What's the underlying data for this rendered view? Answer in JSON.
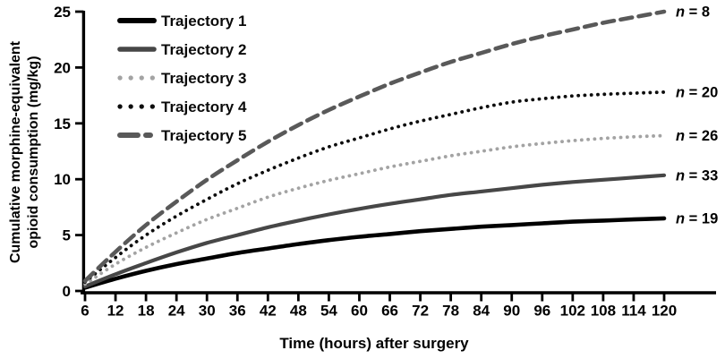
{
  "chart_data": {
    "type": "line",
    "title": "",
    "xlabel": "Time (hours) after surgery",
    "ylabel": "Cumulative morphine-equivalent opioid consumption (mg/kg)",
    "ylabel_lines": [
      "Cumulative morphine-equivalent",
      "opioid consumption (mg/kg)"
    ],
    "xlim": [
      6,
      120
    ],
    "ylim": [
      0,
      25
    ],
    "xticks": [
      6,
      12,
      18,
      24,
      30,
      36,
      42,
      48,
      54,
      60,
      66,
      72,
      78,
      84,
      90,
      96,
      102,
      108,
      114,
      120
    ],
    "yticks": [
      0,
      5,
      10,
      15,
      20,
      25
    ],
    "grid": false,
    "legend_position": "top-left",
    "axis_color": "#000000",
    "x": [
      6,
      12,
      18,
      24,
      30,
      36,
      42,
      48,
      54,
      60,
      66,
      72,
      78,
      84,
      90,
      96,
      102,
      108,
      114,
      120
    ],
    "series": [
      {
        "name": "Trajectory 1",
        "style": "solid",
        "color": "#000000",
        "width": 4.6,
        "n_label": "n = 19",
        "values": [
          0.3,
          1.1,
          1.8,
          2.4,
          2.9,
          3.4,
          3.8,
          4.2,
          4.55,
          4.85,
          5.1,
          5.35,
          5.55,
          5.75,
          5.9,
          6.05,
          6.2,
          6.3,
          6.4,
          6.5
        ]
      },
      {
        "name": "Trajectory 2",
        "style": "solid",
        "color": "#474747",
        "width": 4.2,
        "n_label": "n = 33",
        "values": [
          0.4,
          1.5,
          2.5,
          3.45,
          4.3,
          5.0,
          5.7,
          6.3,
          6.85,
          7.35,
          7.8,
          8.2,
          8.6,
          8.9,
          9.2,
          9.5,
          9.75,
          9.95,
          10.15,
          10.35
        ]
      },
      {
        "name": "Trajectory 3",
        "style": "dotted",
        "color": "#a3a3a3",
        "width": 3.8,
        "n_label": "n = 26",
        "values": [
          0.6,
          2.4,
          3.9,
          5.2,
          6.4,
          7.4,
          8.4,
          9.2,
          9.9,
          10.5,
          11.1,
          11.6,
          12.1,
          12.5,
          12.9,
          13.2,
          13.45,
          13.65,
          13.8,
          13.9
        ]
      },
      {
        "name": "Trajectory 4",
        "style": "dotted",
        "color": "#0d0d0d",
        "width": 3.8,
        "n_label": "n = 20",
        "values": [
          0.8,
          3.0,
          5.0,
          6.7,
          8.2,
          9.6,
          10.8,
          11.9,
          12.9,
          13.7,
          14.5,
          15.2,
          15.8,
          16.4,
          16.9,
          17.2,
          17.45,
          17.6,
          17.7,
          17.8
        ]
      },
      {
        "name": "Trajectory 5",
        "style": "dashed",
        "color": "#595959",
        "width": 4.6,
        "n_label": "n = 8",
        "values": [
          0.9,
          3.5,
          5.9,
          8.0,
          9.95,
          11.7,
          13.35,
          14.85,
          16.2,
          17.4,
          18.55,
          19.55,
          20.5,
          21.3,
          22.1,
          22.8,
          23.4,
          24.0,
          24.5,
          25.0
        ]
      }
    ]
  }
}
